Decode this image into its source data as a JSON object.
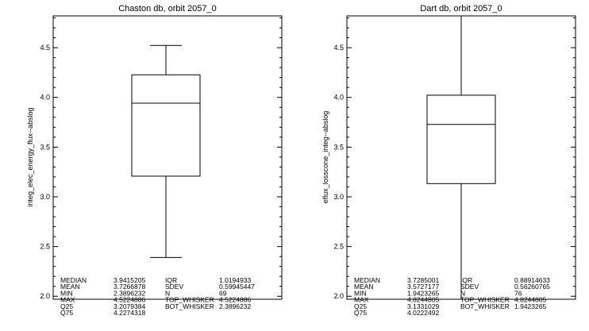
{
  "chart_data": [
    {
      "type": "box",
      "title": "Chaston db, orbit 2057_0",
      "ylabel": "integ_elec_energy_flux--abslog",
      "ylim": [
        1.97,
        4.82
      ],
      "yticks": [
        2.0,
        2.5,
        3.0,
        3.5,
        4.0,
        4.5
      ],
      "yticklabels": [
        "2.0",
        "2.5",
        "3.0",
        "3.5",
        "4.0",
        "4.5"
      ],
      "box": {
        "min": 2.3896232,
        "q25": 3.2079384,
        "median": 3.9415205,
        "q75": 4.2274318,
        "max": 4.5224886,
        "whisker_low": 2.3896232,
        "whisker_high": 4.5224886
      },
      "stats": [
        {
          "k1": "MEDIAN",
          "v1": "3.9415205",
          "k2": "IQR",
          "v2": "1.0194933"
        },
        {
          "k1": "MEAN",
          "v1": "3.7266878",
          "k2": "SDEV",
          "v2": "0.59945447"
        },
        {
          "k1": "MIN",
          "v1": "2.3896232",
          "k2": "N",
          "v2": "69"
        },
        {
          "k1": "MAX",
          "v1": "4.5224886",
          "k2": "TOP_WHISKER",
          "v2": "4.5224886"
        },
        {
          "k1": "Q25",
          "v1": "3.2079384",
          "k2": "BOT_WHISKER",
          "v2": "2.3896232"
        },
        {
          "k1": "Q75",
          "v1": "4.2274318",
          "k2": "",
          "v2": ""
        }
      ]
    },
    {
      "type": "box",
      "title": "Dart db, orbit 2057_0",
      "ylabel": "eflux_losscone_integ--abslog",
      "ylim": [
        1.97,
        4.82
      ],
      "yticks": [
        2.0,
        2.5,
        3.0,
        3.5,
        4.0,
        4.5
      ],
      "yticklabels": [
        "2.0",
        "2.5",
        "3.0",
        "3.5",
        "4.0",
        "4.5"
      ],
      "box": {
        "min": 1.9423265,
        "q25": 3.1331029,
        "median": 3.7285001,
        "q75": 4.0222492,
        "max": 4.8244805,
        "whisker_low": 1.9423265,
        "whisker_high": 4.8244805
      },
      "stats": [
        {
          "k1": "MEDIAN",
          "v1": "3.7285001",
          "k2": "IQR",
          "v2": "0.88914633"
        },
        {
          "k1": "MEAN",
          "v1": "3.5727177",
          "k2": "SDEV",
          "v2": "0.56260765"
        },
        {
          "k1": "MIN",
          "v1": "1.9423265",
          "k2": "N",
          "v2": "76"
        },
        {
          "k1": "MAX",
          "v1": "4.8244805",
          "k2": "TOP_WHISKER",
          "v2": "4.8244805"
        },
        {
          "k1": "Q25",
          "v1": "3.1331029",
          "k2": "BOT_WHISKER",
          "v2": "1.9423265"
        },
        {
          "k1": "Q75",
          "v1": "4.0222492",
          "k2": "",
          "v2": ""
        }
      ]
    }
  ]
}
